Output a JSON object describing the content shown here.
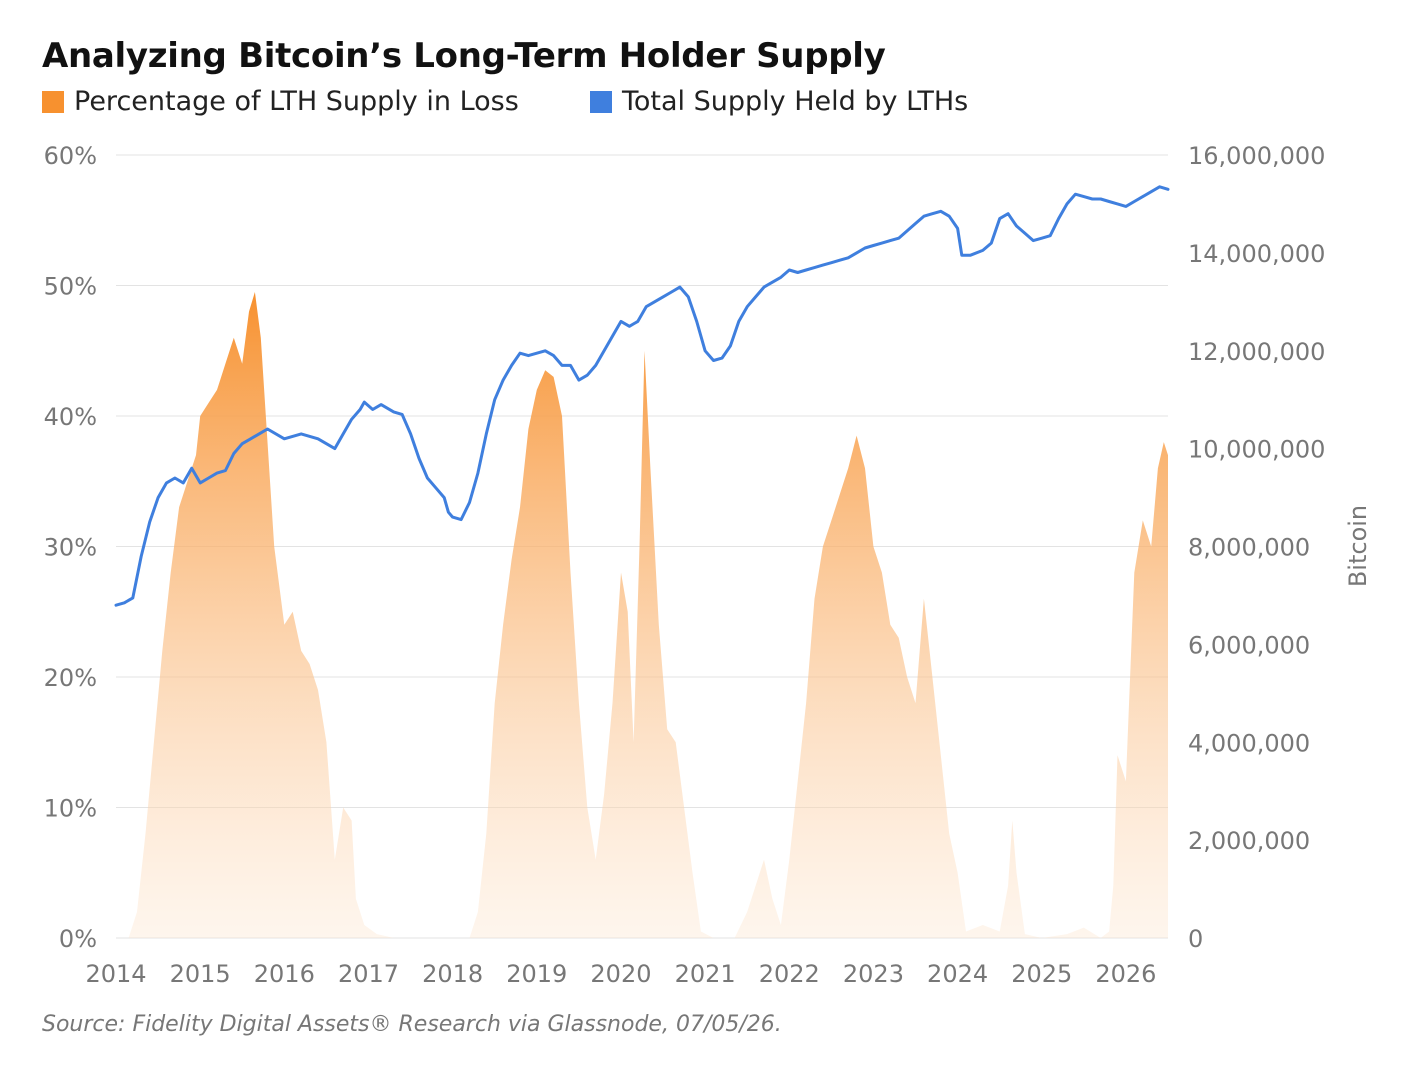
{
  "title": "Analyzing Bitcoin’s Long-Term Holder Supply",
  "source": "Source: Fidelity Digital Assets® Research via Glassnode, 07/05/26.",
  "colors": {
    "loss": "#f7912f",
    "loss_fade": "#fde4cc",
    "lth": "#3f7fde",
    "grid": "#e3e3e3",
    "tick": "#777777"
  },
  "chart_data": {
    "type": "area",
    "legend": "top-left",
    "grid": true,
    "x_ticks": [
      "2014",
      "2015",
      "2016",
      "2017",
      "2018",
      "2019",
      "2020",
      "2021",
      "2022",
      "2023",
      "2024",
      "2025",
      "2026"
    ],
    "xlim": [
      2014.0,
      2026.5
    ],
    "y_left": {
      "ticks": [
        "0%",
        "10%",
        "20%",
        "30%",
        "40%",
        "50%",
        "60%"
      ],
      "ylim": [
        0,
        60
      ]
    },
    "y_right": {
      "label": "Bitcoin",
      "ticks": [
        "0",
        "2,000,000",
        "4,000,000",
        "6,000,000",
        "8,000,000",
        "10,000,000",
        "12,000,000",
        "14,000,000",
        "16,000,000"
      ],
      "ylim": [
        0,
        16000000
      ]
    },
    "series": [
      {
        "name": "Percentage of LTH Supply in Loss",
        "axis": "left",
        "type": "area",
        "points": [
          [
            2014.0,
            0
          ],
          [
            2014.15,
            0
          ],
          [
            2014.25,
            2
          ],
          [
            2014.35,
            8
          ],
          [
            2014.45,
            15
          ],
          [
            2014.55,
            22
          ],
          [
            2014.65,
            28
          ],
          [
            2014.75,
            33
          ],
          [
            2014.85,
            35
          ],
          [
            2014.95,
            37
          ],
          [
            2015.0,
            40
          ],
          [
            2015.1,
            41
          ],
          [
            2015.2,
            42
          ],
          [
            2015.3,
            44
          ],
          [
            2015.4,
            46
          ],
          [
            2015.5,
            44
          ],
          [
            2015.58,
            48
          ],
          [
            2015.65,
            49.5
          ],
          [
            2015.72,
            46
          ],
          [
            2015.8,
            38
          ],
          [
            2015.88,
            30
          ],
          [
            2016.0,
            24
          ],
          [
            2016.1,
            25
          ],
          [
            2016.2,
            22
          ],
          [
            2016.3,
            21
          ],
          [
            2016.4,
            19
          ],
          [
            2016.5,
            15
          ],
          [
            2016.6,
            6
          ],
          [
            2016.7,
            10
          ],
          [
            2016.8,
            9
          ],
          [
            2016.85,
            3
          ],
          [
            2016.95,
            1
          ],
          [
            2017.1,
            0.3
          ],
          [
            2017.3,
            0
          ],
          [
            2018.0,
            0
          ],
          [
            2018.2,
            0
          ],
          [
            2018.3,
            2
          ],
          [
            2018.4,
            8
          ],
          [
            2018.5,
            18
          ],
          [
            2018.6,
            24
          ],
          [
            2018.7,
            29
          ],
          [
            2018.8,
            33
          ],
          [
            2018.9,
            39
          ],
          [
            2019.0,
            42
          ],
          [
            2019.1,
            43.5
          ],
          [
            2019.2,
            43
          ],
          [
            2019.3,
            40
          ],
          [
            2019.4,
            28
          ],
          [
            2019.5,
            18
          ],
          [
            2019.6,
            10
          ],
          [
            2019.7,
            6
          ],
          [
            2019.8,
            11
          ],
          [
            2019.9,
            18
          ],
          [
            2020.0,
            28
          ],
          [
            2020.08,
            25
          ],
          [
            2020.15,
            15
          ],
          [
            2020.22,
            30
          ],
          [
            2020.28,
            45
          ],
          [
            2020.35,
            36
          ],
          [
            2020.45,
            24
          ],
          [
            2020.55,
            16
          ],
          [
            2020.65,
            15
          ],
          [
            2020.75,
            10
          ],
          [
            2020.85,
            5
          ],
          [
            2020.95,
            0.5
          ],
          [
            2021.1,
            0
          ],
          [
            2021.35,
            0
          ],
          [
            2021.5,
            2
          ],
          [
            2021.6,
            4
          ],
          [
            2021.7,
            6
          ],
          [
            2021.8,
            3
          ],
          [
            2021.9,
            1
          ],
          [
            2022.0,
            6
          ],
          [
            2022.1,
            12
          ],
          [
            2022.2,
            18
          ],
          [
            2022.3,
            26
          ],
          [
            2022.4,
            30
          ],
          [
            2022.5,
            32
          ],
          [
            2022.6,
            34
          ],
          [
            2022.7,
            36
          ],
          [
            2022.8,
            38.5
          ],
          [
            2022.9,
            36
          ],
          [
            2023.0,
            30
          ],
          [
            2023.1,
            28
          ],
          [
            2023.2,
            24
          ],
          [
            2023.3,
            23
          ],
          [
            2023.4,
            20
          ],
          [
            2023.5,
            18
          ],
          [
            2023.6,
            26
          ],
          [
            2023.7,
            20
          ],
          [
            2023.8,
            14
          ],
          [
            2023.9,
            8
          ],
          [
            2024.0,
            5
          ],
          [
            2024.1,
            0.5
          ],
          [
            2024.3,
            1
          ],
          [
            2024.5,
            0.5
          ],
          [
            2024.6,
            4
          ],
          [
            2024.65,
            9
          ],
          [
            2024.7,
            5
          ],
          [
            2024.8,
            0.3
          ],
          [
            2025.0,
            0
          ],
          [
            2025.3,
            0.3
          ],
          [
            2025.5,
            0.8
          ],
          [
            2025.7,
            0
          ],
          [
            2025.8,
            0.5
          ],
          [
            2025.85,
            4
          ],
          [
            2025.9,
            14
          ],
          [
            2026.0,
            12
          ],
          [
            2026.1,
            28
          ],
          [
            2026.2,
            32
          ],
          [
            2026.3,
            30
          ],
          [
            2026.38,
            36
          ],
          [
            2026.45,
            38
          ],
          [
            2026.5,
            37
          ]
        ]
      },
      {
        "name": "Total Supply Held by LTHs",
        "axis": "right",
        "type": "line",
        "points": [
          [
            2014.0,
            6800000
          ],
          [
            2014.1,
            6850000
          ],
          [
            2014.2,
            6950000
          ],
          [
            2014.3,
            7800000
          ],
          [
            2014.4,
            8500000
          ],
          [
            2014.5,
            9000000
          ],
          [
            2014.6,
            9300000
          ],
          [
            2014.7,
            9400000
          ],
          [
            2014.8,
            9300000
          ],
          [
            2014.9,
            9600000
          ],
          [
            2015.0,
            9300000
          ],
          [
            2015.1,
            9400000
          ],
          [
            2015.2,
            9500000
          ],
          [
            2015.3,
            9550000
          ],
          [
            2015.4,
            9900000
          ],
          [
            2015.5,
            10100000
          ],
          [
            2015.6,
            10200000
          ],
          [
            2015.7,
            10300000
          ],
          [
            2015.8,
            10400000
          ],
          [
            2016.0,
            10200000
          ],
          [
            2016.2,
            10300000
          ],
          [
            2016.4,
            10200000
          ],
          [
            2016.5,
            10100000
          ],
          [
            2016.6,
            10000000
          ],
          [
            2016.7,
            10300000
          ],
          [
            2016.8,
            10600000
          ],
          [
            2016.9,
            10800000
          ],
          [
            2016.95,
            10950000
          ],
          [
            2017.05,
            10800000
          ],
          [
            2017.15,
            10900000
          ],
          [
            2017.3,
            10750000
          ],
          [
            2017.4,
            10700000
          ],
          [
            2017.5,
            10300000
          ],
          [
            2017.6,
            9800000
          ],
          [
            2017.7,
            9400000
          ],
          [
            2017.8,
            9200000
          ],
          [
            2017.9,
            9000000
          ],
          [
            2017.95,
            8700000
          ],
          [
            2018.0,
            8600000
          ],
          [
            2018.1,
            8550000
          ],
          [
            2018.2,
            8900000
          ],
          [
            2018.3,
            9500000
          ],
          [
            2018.4,
            10300000
          ],
          [
            2018.5,
            11000000
          ],
          [
            2018.6,
            11400000
          ],
          [
            2018.7,
            11700000
          ],
          [
            2018.8,
            11950000
          ],
          [
            2018.9,
            11900000
          ],
          [
            2019.0,
            11950000
          ],
          [
            2019.1,
            12000000
          ],
          [
            2019.2,
            11900000
          ],
          [
            2019.3,
            11700000
          ],
          [
            2019.4,
            11700000
          ],
          [
            2019.5,
            11400000
          ],
          [
            2019.6,
            11500000
          ],
          [
            2019.7,
            11700000
          ],
          [
            2019.8,
            12000000
          ],
          [
            2019.9,
            12300000
          ],
          [
            2020.0,
            12600000
          ],
          [
            2020.1,
            12500000
          ],
          [
            2020.2,
            12600000
          ],
          [
            2020.3,
            12900000
          ],
          [
            2020.4,
            13000000
          ],
          [
            2020.5,
            13100000
          ],
          [
            2020.6,
            13200000
          ],
          [
            2020.7,
            13300000
          ],
          [
            2020.8,
            13100000
          ],
          [
            2020.9,
            12600000
          ],
          [
            2021.0,
            12000000
          ],
          [
            2021.1,
            11800000
          ],
          [
            2021.2,
            11850000
          ],
          [
            2021.3,
            12100000
          ],
          [
            2021.4,
            12600000
          ],
          [
            2021.5,
            12900000
          ],
          [
            2021.6,
            13100000
          ],
          [
            2021.7,
            13300000
          ],
          [
            2021.8,
            13400000
          ],
          [
            2021.9,
            13500000
          ],
          [
            2022.0,
            13650000
          ],
          [
            2022.1,
            13600000
          ],
          [
            2022.2,
            13650000
          ],
          [
            2022.3,
            13700000
          ],
          [
            2022.4,
            13750000
          ],
          [
            2022.5,
            13800000
          ],
          [
            2022.6,
            13850000
          ],
          [
            2022.7,
            13900000
          ],
          [
            2022.8,
            14000000
          ],
          [
            2022.9,
            14100000
          ],
          [
            2023.0,
            14150000
          ],
          [
            2023.1,
            14200000
          ],
          [
            2023.2,
            14250000
          ],
          [
            2023.3,
            14300000
          ],
          [
            2023.4,
            14450000
          ],
          [
            2023.5,
            14600000
          ],
          [
            2023.6,
            14750000
          ],
          [
            2023.7,
            14800000
          ],
          [
            2023.8,
            14850000
          ],
          [
            2023.9,
            14750000
          ],
          [
            2024.0,
            14500000
          ],
          [
            2024.05,
            13950000
          ],
          [
            2024.15,
            13950000
          ],
          [
            2024.3,
            14050000
          ],
          [
            2024.4,
            14200000
          ],
          [
            2024.5,
            14700000
          ],
          [
            2024.6,
            14800000
          ],
          [
            2024.7,
            14550000
          ],
          [
            2024.8,
            14400000
          ],
          [
            2024.9,
            14250000
          ],
          [
            2025.0,
            14300000
          ],
          [
            2025.1,
            14350000
          ],
          [
            2025.2,
            14700000
          ],
          [
            2025.3,
            15000000
          ],
          [
            2025.4,
            15200000
          ],
          [
            2025.5,
            15150000
          ],
          [
            2025.6,
            15100000
          ],
          [
            2025.7,
            15100000
          ],
          [
            2025.8,
            15050000
          ],
          [
            2025.9,
            15000000
          ],
          [
            2026.0,
            14950000
          ],
          [
            2026.1,
            15050000
          ],
          [
            2026.2,
            15150000
          ],
          [
            2026.3,
            15250000
          ],
          [
            2026.4,
            15350000
          ],
          [
            2026.5,
            15300000
          ]
        ]
      }
    ]
  }
}
